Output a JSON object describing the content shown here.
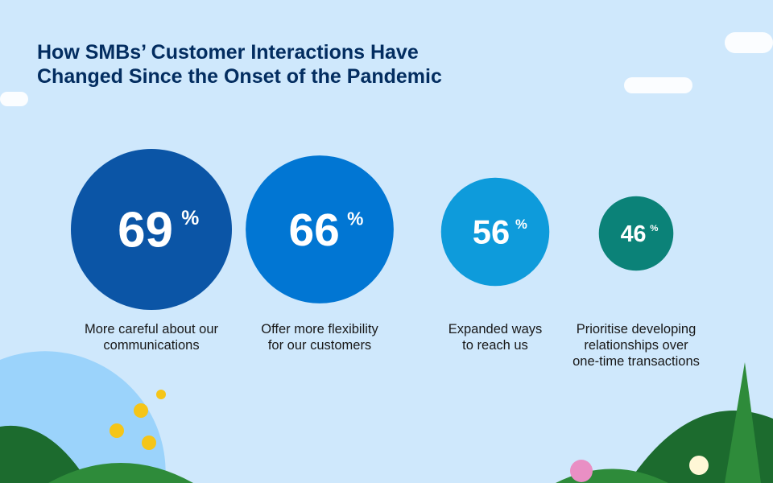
{
  "title": [
    "How SMBs’ Customer Interactions Have",
    "Changed Since the Onset of the Pandemic"
  ],
  "chart_data": {
    "type": "bubble",
    "title": "How SMBs’ Customer Interactions Have Changed Since the Onset of the Pandemic",
    "unit": "%",
    "items": [
      {
        "value": 69,
        "label": "69",
        "caption": [
          "More careful about our",
          "communications"
        ],
        "color": "#0b55a6"
      },
      {
        "value": 66,
        "label": "66",
        "caption": [
          "Offer more flexibility",
          "for our customers"
        ],
        "color": "#0176d3"
      },
      {
        "value": 56,
        "label": "56",
        "caption": [
          "Expanded ways",
          "to reach us"
        ],
        "color": "#0e9bdb"
      },
      {
        "value": 46,
        "label": "46",
        "caption": [
          "Prioritise developing",
          "relationships over",
          "one-time transactions"
        ],
        "color": "#0b8278"
      }
    ]
  },
  "colors": {
    "background": "#cfe8fc",
    "title": "#032d60",
    "leaf": "#1c6b2e",
    "flower": "#f5c518"
  }
}
